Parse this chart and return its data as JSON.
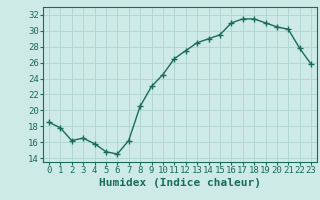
{
  "x": [
    0,
    1,
    2,
    3,
    4,
    5,
    6,
    7,
    8,
    9,
    10,
    11,
    12,
    13,
    14,
    15,
    16,
    17,
    18,
    19,
    20,
    21,
    22,
    23
  ],
  "y": [
    18.5,
    17.8,
    16.2,
    16.5,
    15.8,
    14.8,
    14.5,
    16.2,
    20.5,
    23.0,
    24.5,
    26.5,
    27.5,
    28.5,
    29.0,
    29.5,
    31.0,
    31.5,
    31.5,
    31.0,
    30.5,
    30.2,
    27.8,
    25.8
  ],
  "line_color": "#1a6b5a",
  "marker": "+",
  "marker_color": "#1a6b5a",
  "bg_color": "#cdeae6",
  "grid_color": "#aed4cf",
  "xlabel": "Humidex (Indice chaleur)",
  "ylabel_ticks": [
    14,
    16,
    18,
    20,
    22,
    24,
    26,
    28,
    30,
    32
  ],
  "ylim": [
    13.5,
    33.0
  ],
  "xlim": [
    -0.5,
    23.5
  ],
  "xlabel_fontsize": 8,
  "tick_fontsize": 6.5,
  "line_width": 1.0,
  "marker_size": 4
}
